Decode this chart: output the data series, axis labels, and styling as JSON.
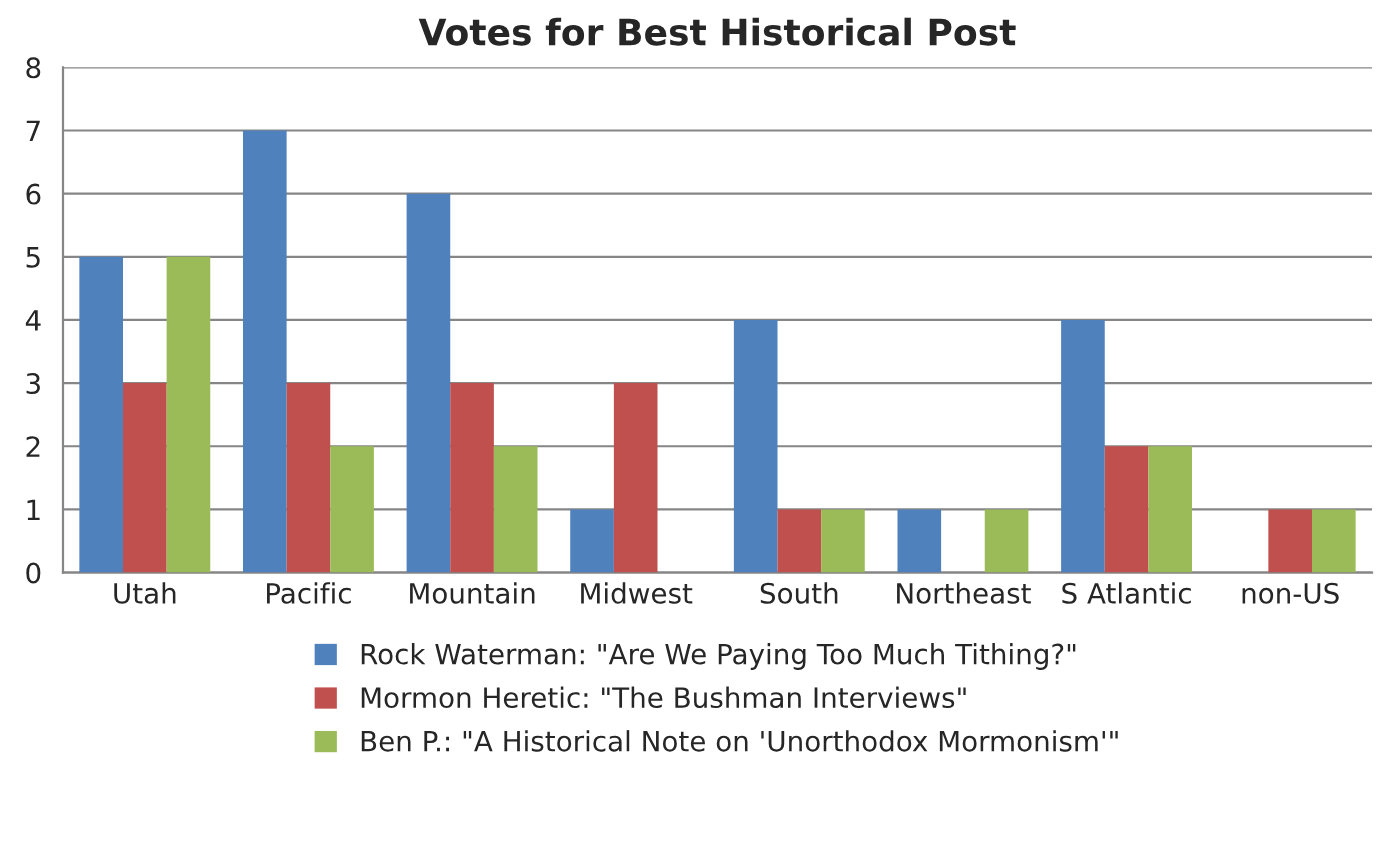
{
  "chart_data": {
    "type": "bar",
    "title": "Votes for Best Historical Post",
    "categories": [
      "Utah",
      "Pacific",
      "Mountain",
      "Midwest",
      "South",
      "Northeast",
      "S Atlantic",
      "non-US"
    ],
    "series": [
      {
        "name": "Rock Waterman: \"Are We Paying Too Much Tithing?\"",
        "color": "#4f81bd",
        "values": [
          5,
          7,
          6,
          1,
          4,
          1,
          4,
          0
        ]
      },
      {
        "name": "Mormon Heretic: \"The Bushman Interviews\"",
        "color": "#c0504d",
        "values": [
          3,
          3,
          3,
          3,
          1,
          0,
          2,
          1
        ]
      },
      {
        "name": "Ben P.: \"A Historical Note on 'Unorthodox Mormonism'\"",
        "color": "#9bbb59",
        "values": [
          5,
          2,
          2,
          0,
          1,
          1,
          2,
          1
        ]
      }
    ],
    "ylim": [
      0,
      8
    ],
    "yticks": [
      0,
      1,
      2,
      3,
      4,
      5,
      6,
      7,
      8
    ],
    "grid": "y",
    "legend": "bottom"
  }
}
